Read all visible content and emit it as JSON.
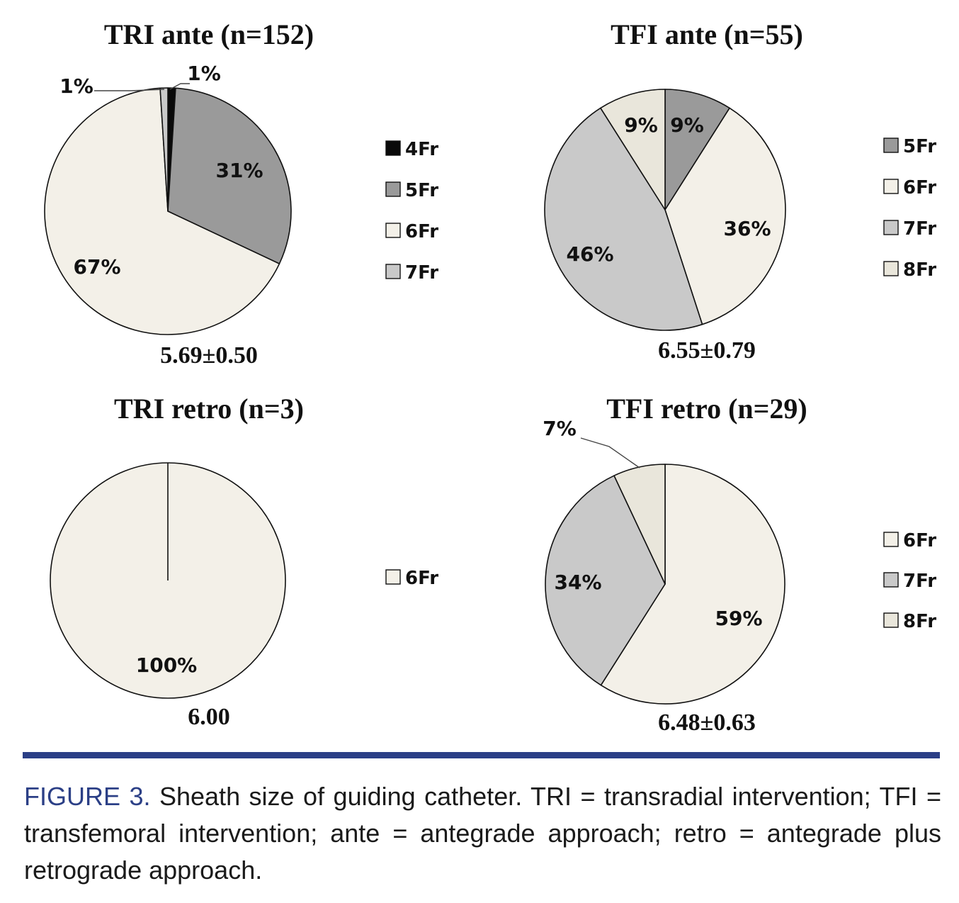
{
  "colors": {
    "4Fr": "#0a0a0a",
    "5Fr": "#9a9a9a",
    "6Fr": "#f3f0e8",
    "7Fr": "#c9c9c9",
    "8Fr": "#e9e6db",
    "divider": "#2b3f86"
  },
  "chart_data": [
    {
      "type": "pie",
      "title": "TRI ante (n=152)",
      "stat": "5.69±0.50",
      "categories": [
        "4Fr",
        "5Fr",
        "6Fr",
        "7Fr"
      ],
      "values": [
        1,
        31,
        67,
        1
      ],
      "value_labels": [
        "1%",
        "31%",
        "67%",
        "1%"
      ],
      "legend": [
        "4Fr",
        "5Fr",
        "6Fr",
        "7Fr"
      ]
    },
    {
      "type": "pie",
      "title": "TFI ante (n=55)",
      "stat": "6.55±0.79",
      "categories": [
        "5Fr",
        "6Fr",
        "7Fr",
        "8Fr"
      ],
      "values": [
        9,
        36,
        46,
        9
      ],
      "value_labels": [
        "9%",
        "36%",
        "46%",
        "9%"
      ],
      "legend": [
        "5Fr",
        "6Fr",
        "7Fr",
        "8Fr"
      ]
    },
    {
      "type": "pie",
      "title": "TRI retro (n=3)",
      "stat": "6.00",
      "categories": [
        "6Fr"
      ],
      "values": [
        100
      ],
      "value_labels": [
        "100%"
      ],
      "legend": [
        "6Fr"
      ]
    },
    {
      "type": "pie",
      "title": "TFI retro (n=29)",
      "stat": "6.48±0.63",
      "categories": [
        "6Fr",
        "7Fr",
        "8Fr"
      ],
      "values": [
        59,
        34,
        7
      ],
      "value_labels": [
        "59%",
        "34%",
        "7%"
      ],
      "legend": [
        "6Fr",
        "7Fr",
        "8Fr"
      ]
    }
  ],
  "caption": {
    "label": "FIGURE 3.",
    "text": "Sheath size of guiding catheter. TRI = transradial intervention; TFI = transfemoral intervention; ante = antegrade approach; retro = antegrade plus retrograde approach."
  }
}
